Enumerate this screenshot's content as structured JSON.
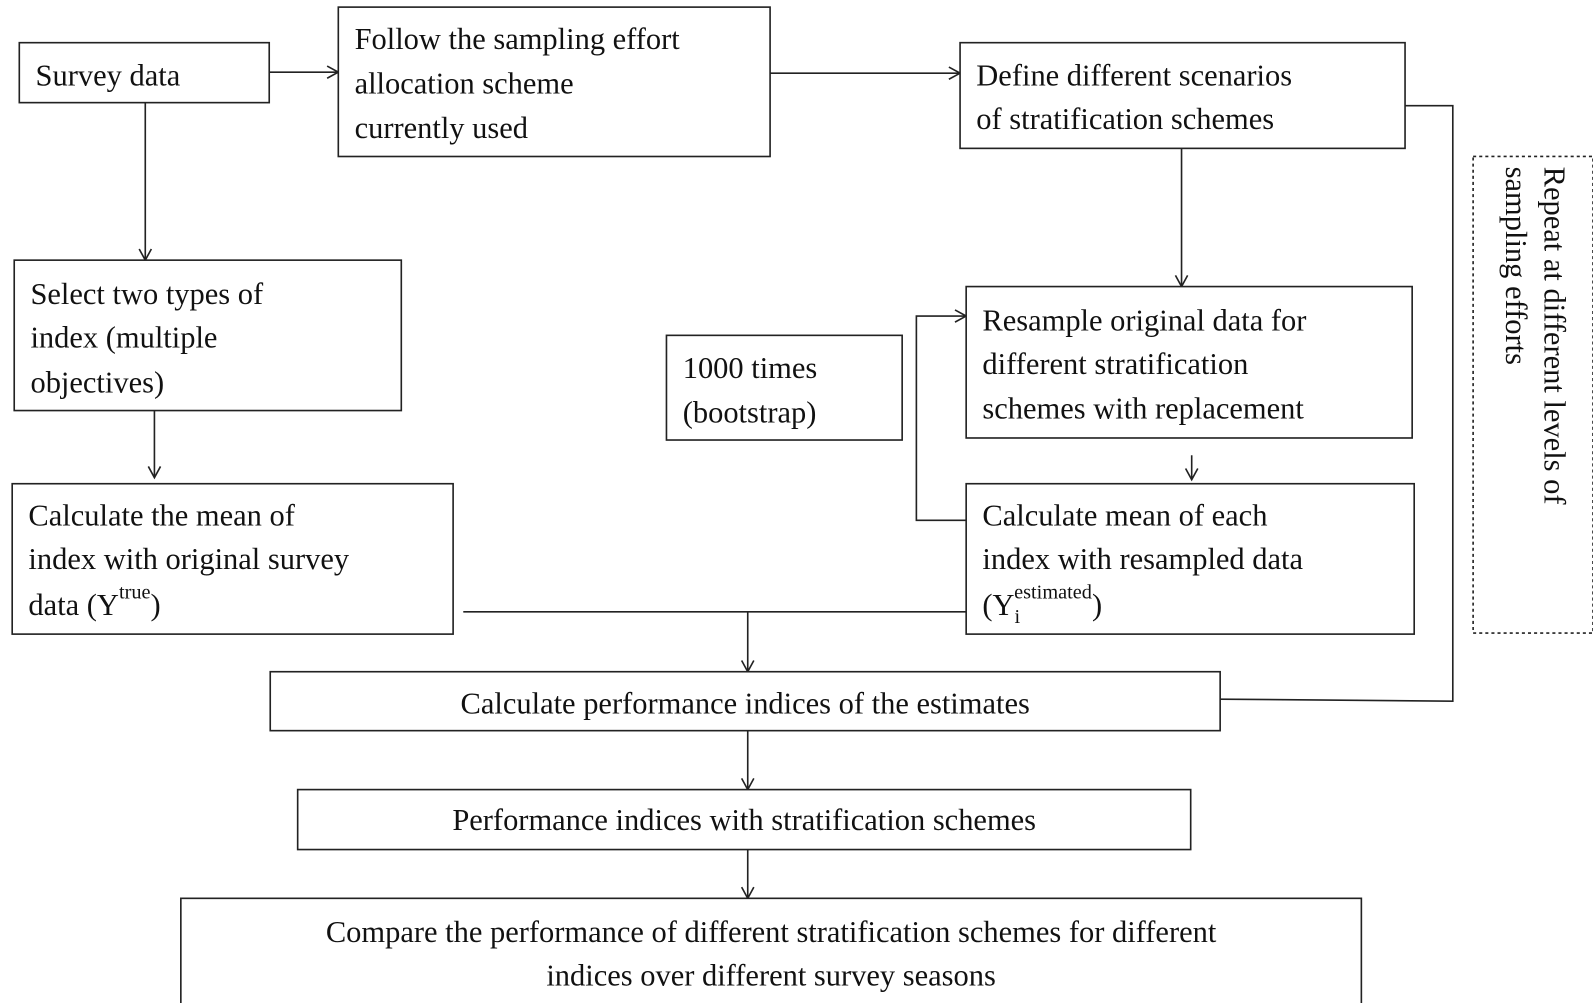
{
  "nodes": [
    {
      "id": "survey",
      "lines": [
        "Survey  data"
      ]
    },
    {
      "id": "follow",
      "lines": [
        "Follow the sampling  effort",
        "allocation scheme",
        "currently  used"
      ]
    },
    {
      "id": "define",
      "lines": [
        "Define  different  scenarios",
        "of stratification  schemes"
      ]
    },
    {
      "id": "select",
      "lines": [
        "Select  two types  of",
        "index (multiple",
        "objectives)"
      ]
    },
    {
      "id": "times",
      "lines": [
        "1000 times",
        "(bootstrap)"
      ]
    },
    {
      "id": "resample",
      "lines": [
        "Resample  original  data   for",
        "different  stratification",
        "schemes  with replacement"
      ]
    },
    {
      "id": "meanorig",
      "lines": [
        "Calculate  the mean   of",
        "index  with original  survey"
      ],
      "formula": {
        "before": "data (Y",
        "sup": "true",
        "after": ")"
      }
    },
    {
      "id": "meaneach",
      "lines": [
        "Calculate  mean  of each",
        "index  with resampled  data"
      ],
      "formula": {
        "before": "(Y",
        "sub": "i",
        "sup": "estimated",
        "after": ")"
      }
    },
    {
      "id": "perf",
      "lines": [
        "Calculate  performance  indices  of the estimates"
      ]
    },
    {
      "id": "perfwith",
      "lines": [
        "Performance  indices  with stratification  schemes"
      ]
    },
    {
      "id": "compare",
      "lines": [
        "Compare  the performance  of different  stratification  schemes  for different",
        "indices  over  different  survey  seasons"
      ]
    },
    {
      "id": "repeat",
      "lines": [
        "Repeat  at different  levels  of",
        "sampling  efforts"
      ]
    }
  ]
}
